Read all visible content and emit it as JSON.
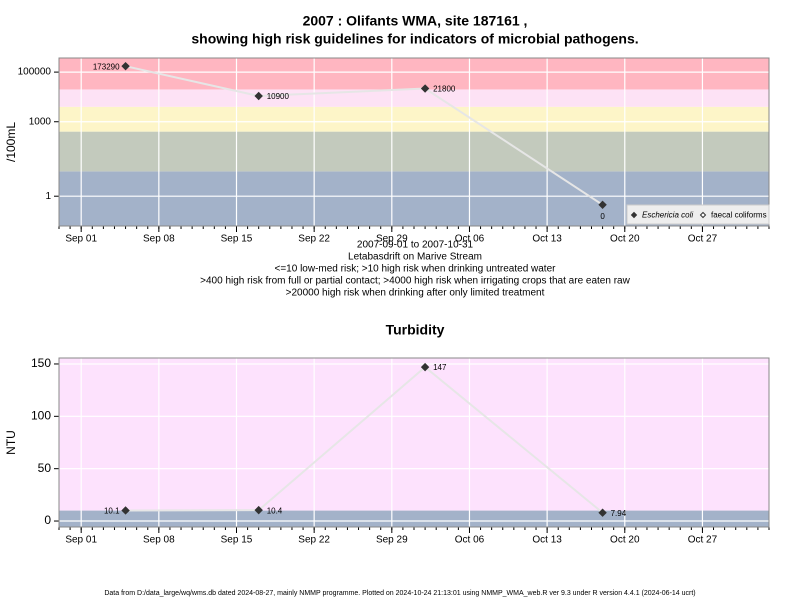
{
  "chart_data": [
    {
      "type": "line",
      "title": [
        "2007 : Olifants WMA, site 187161 ,",
        "showing high risk guidelines for indicators of microbial pathogens."
      ],
      "notes": [
        "2007-09-01 to 2007-10-31",
        "Letabasdrift on Marive Stream",
        "<=10 low-med risk; >10 high risk when drinking untreated water",
        ">400 high risk from full or partial contact; >4000 high risk when irrigating crops that are eaten raw",
        ">20000 high risk when drinking after only limited treatment"
      ],
      "y_label": "/100mL",
      "log_y": true,
      "x": [
        "2007-09-05",
        "2007-09-17",
        "2007-10-02",
        "2007-10-18"
      ],
      "series": [
        {
          "name": "Eschericia coli",
          "color": "#333333",
          "line_color": "#e6e6e6",
          "filled": true,
          "values": [
            173290,
            10900,
            21800,
            0.45
          ],
          "value_labels": [
            "173290",
            "10900",
            "21800",
            "0"
          ]
        },
        {
          "name": "faecal coliforms",
          "color": "#333333",
          "line_color": "#e6e6e6",
          "filled": false,
          "values": [
            null,
            null,
            null,
            null
          ]
        }
      ],
      "band_breaks": [
        10,
        400,
        4000,
        20000
      ],
      "band_colors": [
        "#a3b2c9",
        "#c3cabd",
        "#fdf5c8",
        "#fde2f5",
        "#ffb6c1"
      ],
      "xlim": [
        "2007-08-30",
        "2007-11-02"
      ],
      "xticks": [
        {
          "value": "2007-09-01",
          "label": "Sep 01"
        },
        {
          "value": "2007-09-08",
          "label": "Sep 08"
        },
        {
          "value": "2007-09-15",
          "label": "Sep 15"
        },
        {
          "value": "2007-09-22",
          "label": "Sep 22"
        },
        {
          "value": "2007-09-29",
          "label": "Sep 29"
        },
        {
          "value": "2007-10-06",
          "label": "Oct 06"
        },
        {
          "value": "2007-10-13",
          "label": "Oct 13"
        },
        {
          "value": "2007-10-20",
          "label": "Oct 20"
        },
        {
          "value": "2007-10-27",
          "label": "Oct 27"
        }
      ],
      "ylim": [
        0.063,
        370000
      ],
      "yticks": [
        1,
        1000,
        100000
      ],
      "grid": true,
      "legend": "bottom right"
    },
    {
      "type": "line",
      "title": "Turbidity",
      "y_label": "NTU",
      "log_y": false,
      "x": [
        "2007-09-05",
        "2007-09-17",
        "2007-10-02",
        "2007-10-18"
      ],
      "series": [
        {
          "name": "Turbidity",
          "color": "#333333",
          "line_color": "#e6e6e6",
          "filled": true,
          "values": [
            10.1,
            10.4,
            147,
            7.94
          ]
        }
      ],
      "band_breaks": [
        10
      ],
      "band_colors": [
        "#a3b2c9",
        "#fde2fd"
      ],
      "xlim": [
        "2007-08-30",
        "2007-11-02"
      ],
      "xticks": [
        {
          "value": "2007-09-01",
          "label": "Sep 01"
        },
        {
          "value": "2007-09-08",
          "label": "Sep 08"
        },
        {
          "value": "2007-09-15",
          "label": "Sep 15"
        },
        {
          "value": "2007-09-22",
          "label": "Sep 22"
        },
        {
          "value": "2007-09-29",
          "label": "Sep 29"
        },
        {
          "value": "2007-10-06",
          "label": "Oct 06"
        },
        {
          "value": "2007-10-13",
          "label": "Oct 13"
        },
        {
          "value": "2007-10-20",
          "label": "Oct 20"
        },
        {
          "value": "2007-10-27",
          "label": "Oct 27"
        }
      ],
      "ylim": [
        -5.7,
        155.7
      ],
      "yticks": [
        0,
        50,
        100,
        150
      ],
      "grid": true
    }
  ],
  "footer": "Data from D:/data_large/wq/wms.db dated 2024-08-27, mainly NMMP programme. Plotted on 2024-10-24 21:13:01 using NMMP_WMA_web.R ver 9.3 under R version 4.4.1 (2024-06-14 ucrt)"
}
